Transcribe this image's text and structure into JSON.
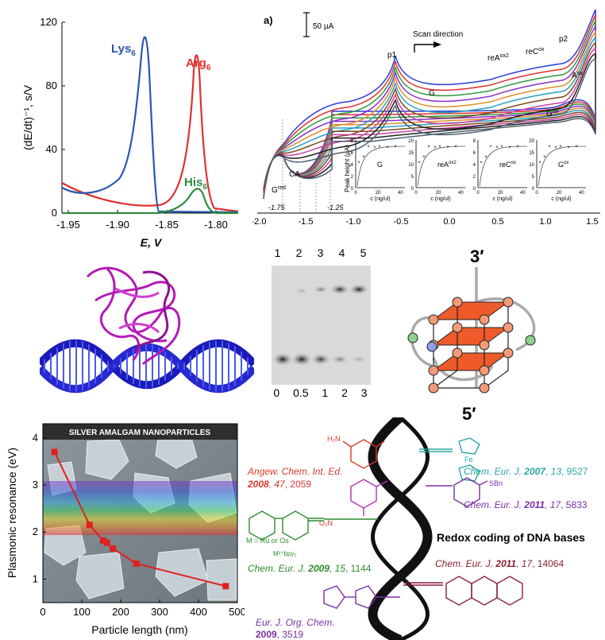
{
  "panel_a": {
    "ylabel": "(dE/dt)⁻¹, s/V",
    "xlabel": "E, V",
    "yticks": [
      "0",
      "40",
      "80",
      "120"
    ],
    "xticks": [
      "-1.95",
      "-1.90",
      "-1.85",
      "-1.80"
    ],
    "series": [
      {
        "name": "Lys",
        "sub": "6",
        "color": "#2a56b0"
      },
      {
        "name": "Arg",
        "sub": "6",
        "color": "#e03030"
      },
      {
        "name": "His",
        "sub": "6",
        "color": "#2e8b3e"
      }
    ]
  },
  "panel_b": {
    "label": "a)",
    "scale": "50 µA",
    "scan": "Scan direction",
    "xticks": [
      "-2.0",
      "-1.5",
      "-1.0",
      "-0.5",
      "0.0",
      "0.5",
      "1.0",
      "1.5"
    ],
    "vlabels": [
      "-1.75",
      "-1.25"
    ],
    "annotations": [
      "p1",
      "G",
      "reA",
      "ox2",
      "reC",
      "ox",
      "p2",
      "A",
      "ox",
      "G",
      "ox",
      "CA",
      "G",
      "red"
    ],
    "inset_ylabel": "Peak height (µA)",
    "insets": [
      {
        "title": "G",
        "yticks": [
          "0",
          "2",
          "4",
          "6",
          "8"
        ],
        "xticks": [
          "0",
          "20",
          "40"
        ],
        "xlabel": "c (ng/ul)"
      },
      {
        "title": "reA",
        "sup": "ox2",
        "yticks": [
          "0",
          "5",
          "10",
          "15",
          "20"
        ],
        "xticks": [
          "0",
          "20",
          "40"
        ],
        "xlabel": "c (ng/ul)"
      },
      {
        "title": "reC",
        "sup": "ox",
        "yticks": [
          "0",
          "2",
          "4",
          "6",
          "8"
        ],
        "xticks": [
          "0",
          "20",
          "40"
        ],
        "xlabel": "c (ng/ul)"
      },
      {
        "title": "G",
        "sup": "ox",
        "yticks": [
          "0",
          "5",
          "10",
          "15",
          "20"
        ],
        "xticks": [
          "0",
          "20",
          "40"
        ],
        "xlabel": "c (ng/ul)"
      }
    ]
  },
  "gel": {
    "lanes_top": [
      "1",
      "2",
      "3",
      "4",
      "5"
    ],
    "lanes_bottom": [
      "0",
      "0.5",
      "1",
      "2",
      "3"
    ]
  },
  "quadruplex": {
    "end_top": "3′",
    "end_bottom": "5′",
    "plane_color": "#ee5a2a"
  },
  "nano": {
    "banner": "SILVER AMALGAM NANOPARTICLES",
    "ylabel": "Plasmonic resonance (eV)",
    "xlabel": "Particle length (nm)",
    "yticks": [
      "1",
      "2",
      "3",
      "4"
    ],
    "xticks": [
      "0",
      "100",
      "200",
      "300",
      "400",
      "500"
    ],
    "chart_data": {
      "type": "line",
      "x": [
        30,
        120,
        155,
        165,
        180,
        240,
        470
      ],
      "y": [
        3.7,
        2.15,
        1.82,
        1.77,
        1.65,
        1.33,
        0.85
      ],
      "xlim": [
        0,
        500
      ],
      "ylim": [
        0.5,
        4.3
      ]
    }
  },
  "redox": {
    "title": "Redox coding of DNA bases",
    "metal_note": "M = Ru or Os",
    "metal_complex": "M²⁺bpy₂",
    "refs": [
      {
        "journal": "Angew. Chem. Int. Ed.",
        "year": "2008",
        "vol": "47",
        "page": "2059",
        "color": "#d63a2e"
      },
      {
        "journal": "Chem. Eur. J.",
        "year": "2007",
        "vol": "13",
        "page": "9527",
        "color": "#2aa6a2"
      },
      {
        "journal": "Chem. Eur. J.",
        "year": "2011",
        "vol": "17",
        "page": "5833",
        "color": "#7a2fa8"
      },
      {
        "journal": "Chem. Eur. J.",
        "year": "2009",
        "vol": "15",
        "page": "1144",
        "color": "#2d8a2d"
      },
      {
        "journal": "Chem. Eur. J.",
        "year": "2011",
        "vol": "17",
        "page": "14064",
        "color": "#8a1f35"
      },
      {
        "journal": "Eur. J. Org. Chem.",
        "year": "2009",
        "vol": "",
        "page": "3519",
        "color": "#7a2fa8"
      }
    ],
    "substituents": [
      "H₂N",
      "O₂N",
      "Fe",
      "SBn"
    ]
  }
}
